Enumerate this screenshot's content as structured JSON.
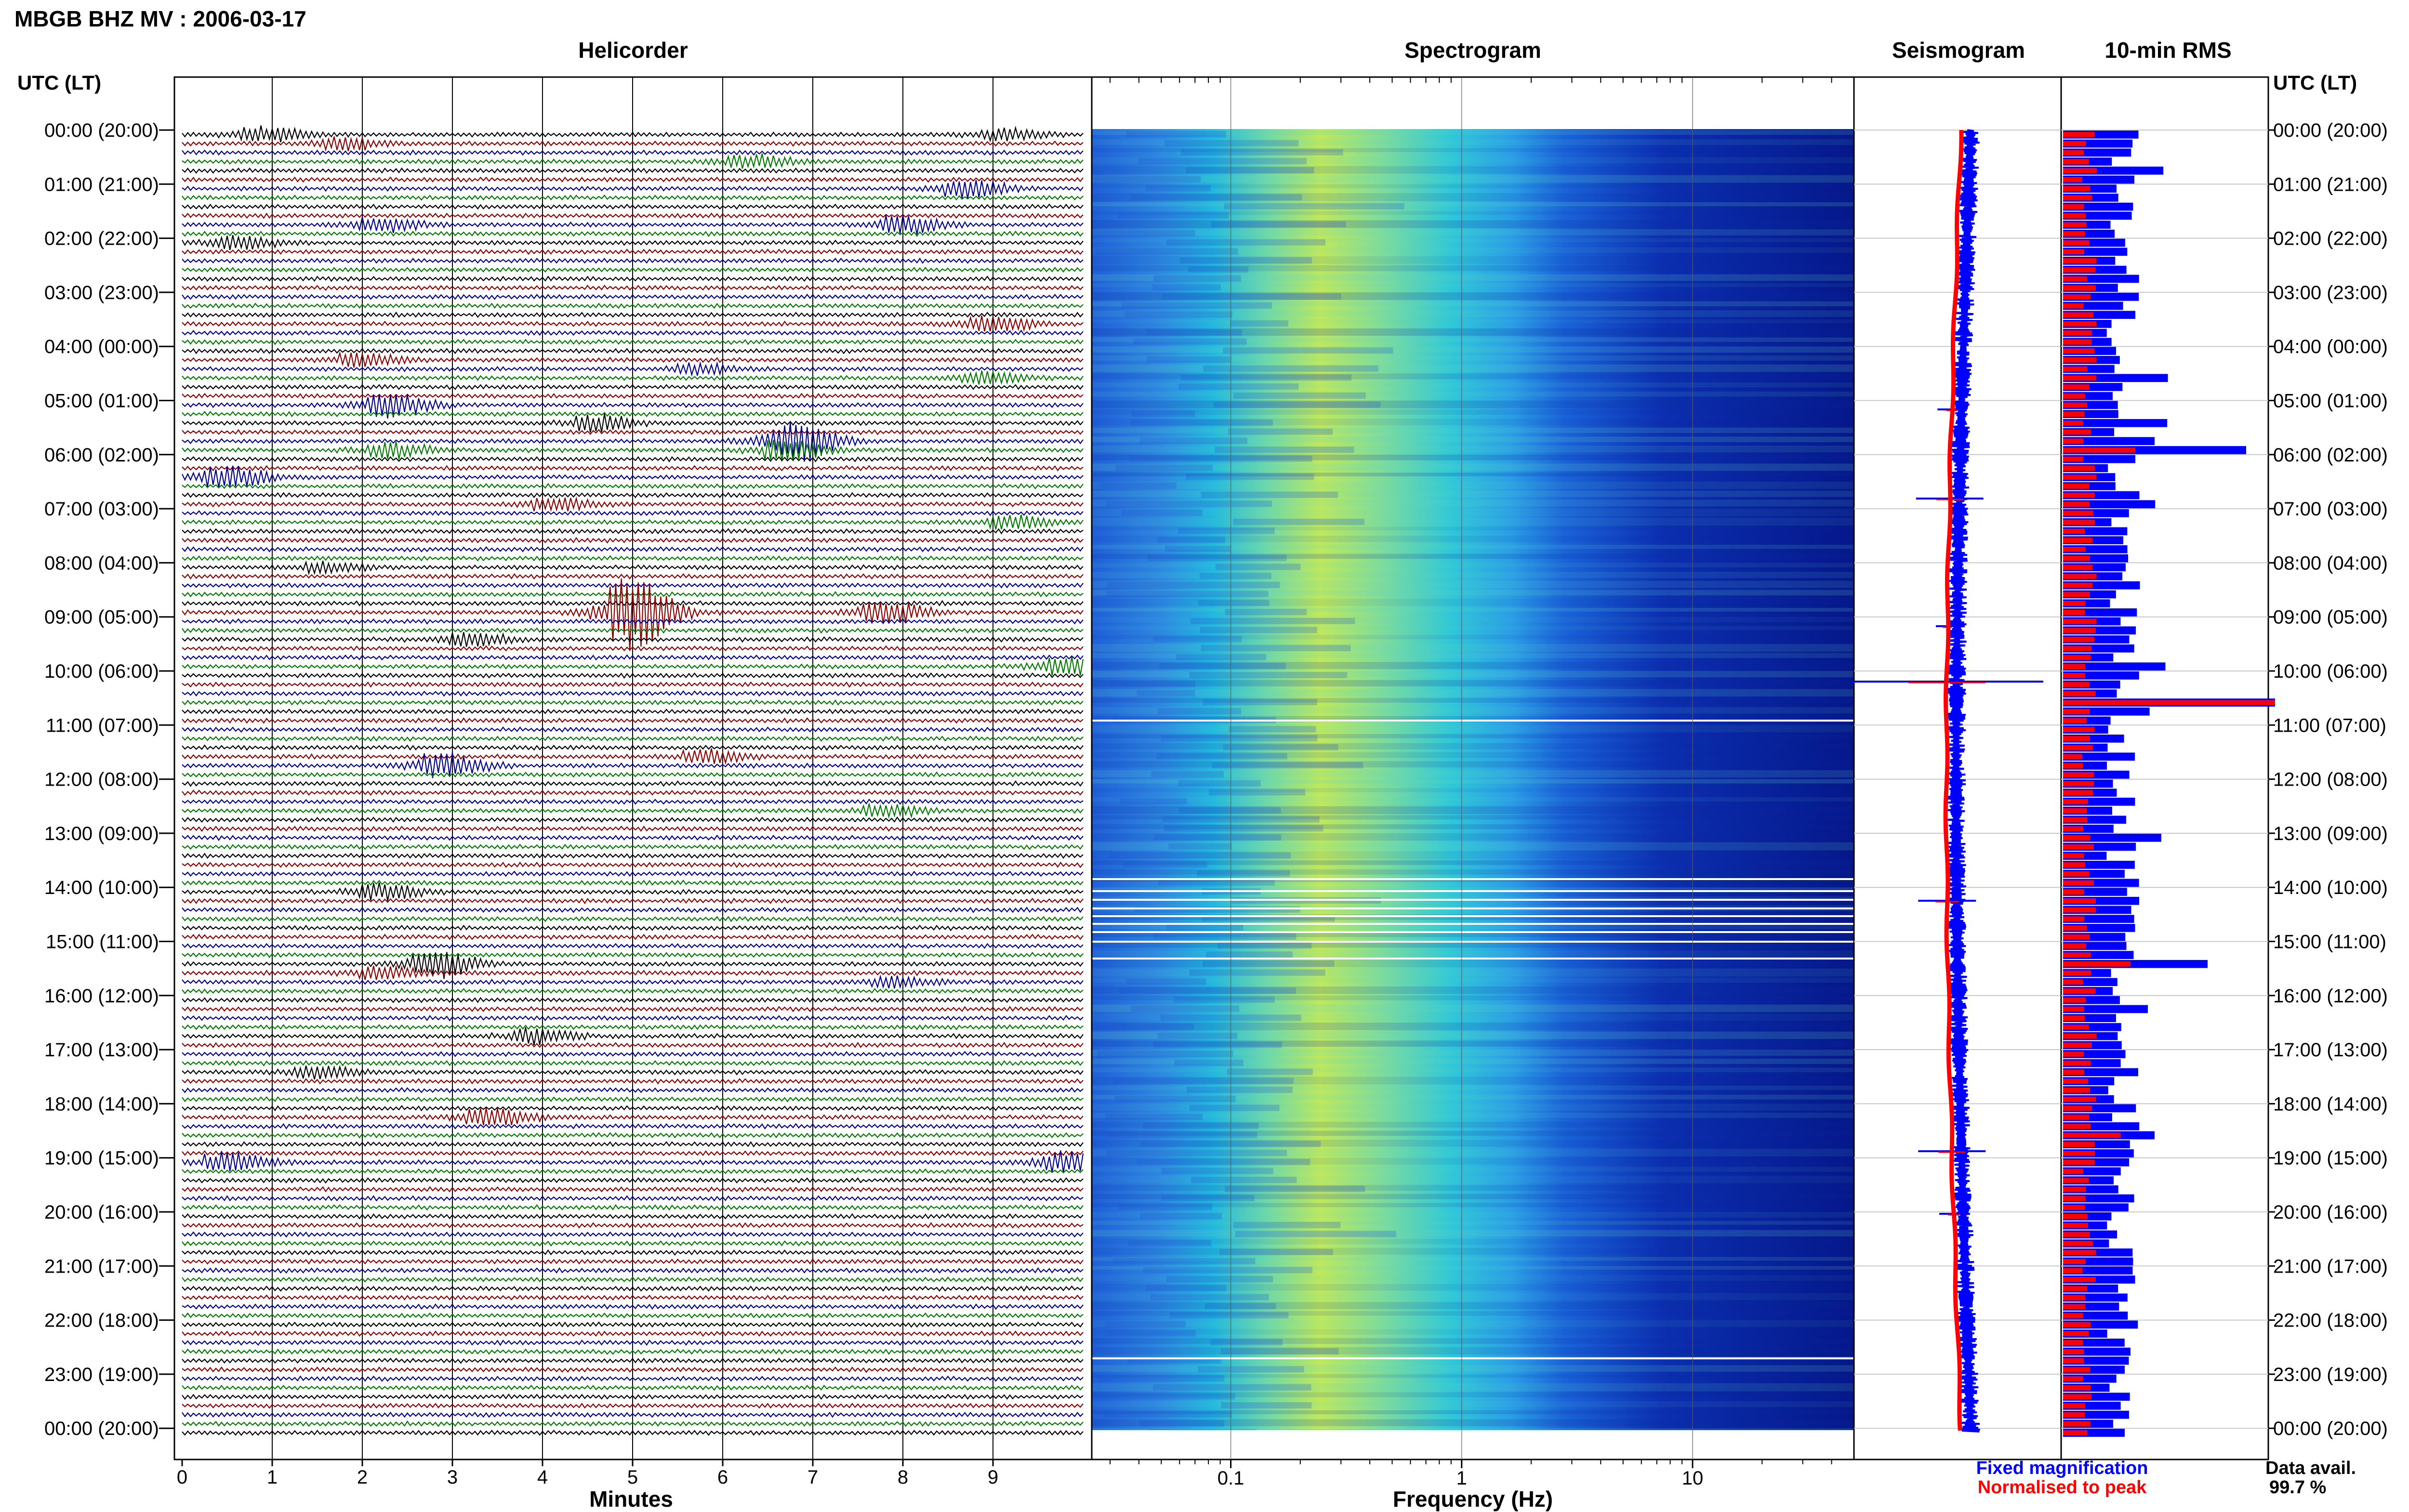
{
  "header": {
    "title": "MBGB BHZ MV : 2006-03-17",
    "utc_label_left": "UTC (LT)",
    "utc_label_right": "UTC (LT)"
  },
  "panels": {
    "helicorder": "Helicorder",
    "spectrogram": "Spectrogram",
    "seismogram": "Seismogram",
    "rms": "10-min RMS"
  },
  "chart_data": {
    "type": "heatmap",
    "time_labels": [
      "00:00 (20:00)",
      "01:00 (21:00)",
      "02:00 (22:00)",
      "03:00 (23:00)",
      "04:00 (00:00)",
      "05:00 (01:00)",
      "06:00 (02:00)",
      "07:00 (03:00)",
      "08:00 (04:00)",
      "09:00 (05:00)",
      "10:00 (06:00)",
      "11:00 (07:00)",
      "12:00 (08:00)",
      "13:00 (09:00)",
      "14:00 (10:00)",
      "15:00 (11:00)",
      "16:00 (12:00)",
      "17:00 (13:00)",
      "18:00 (14:00)",
      "19:00 (15:00)",
      "20:00 (16:00)",
      "21:00 (17:00)",
      "22:00 (18:00)",
      "23:00 (19:00)",
      "00:00 (20:00)"
    ],
    "helicorder": {
      "xlabel": "Minutes",
      "x_ticks": [
        "0",
        "1",
        "2",
        "3",
        "4",
        "5",
        "6",
        "7",
        "8",
        "9"
      ],
      "xlim": [
        0,
        10
      ],
      "trace_colors": [
        "#000000",
        "#8b0000",
        "#00008b",
        "#007a00"
      ],
      "events": [
        {
          "row": 0,
          "minute": 0.9,
          "amp": 0.6
        },
        {
          "row": 1,
          "minute": 1.8,
          "amp": 0.5
        },
        {
          "row": 0,
          "minute": 9.1,
          "amp": 0.4
        },
        {
          "row": 3,
          "minute": 6.3,
          "amp": 0.5
        },
        {
          "row": 6,
          "minute": 8.7,
          "amp": 0.7
        },
        {
          "row": 10,
          "minute": 2.2,
          "amp": 0.6
        },
        {
          "row": 10,
          "minute": 8.0,
          "amp": 0.7
        },
        {
          "row": 12,
          "minute": 0.6,
          "amp": 0.5
        },
        {
          "row": 21,
          "minute": 9.0,
          "amp": 0.6
        },
        {
          "row": 25,
          "minute": 2.0,
          "amp": 0.5
        },
        {
          "row": 26,
          "minute": 5.7,
          "amp": 0.4
        },
        {
          "row": 27,
          "minute": 8.9,
          "amp": 0.4
        },
        {
          "row": 30,
          "minute": 2.3,
          "amp": 0.9
        },
        {
          "row": 32,
          "minute": 4.6,
          "amp": 0.6
        },
        {
          "row": 34,
          "minute": 6.8,
          "amp": 1.6
        },
        {
          "row": 35,
          "minute": 6.7,
          "amp": 0.8
        },
        {
          "row": 35,
          "minute": 2.3,
          "amp": 0.6
        },
        {
          "row": 38,
          "minute": 0.5,
          "amp": 0.8
        },
        {
          "row": 41,
          "minute": 4.1,
          "amp": 0.5
        },
        {
          "row": 43,
          "minute": 9.2,
          "amp": 0.5
        },
        {
          "row": 48,
          "minute": 1.6,
          "amp": 0.4
        },
        {
          "row": 53,
          "minute": 5.0,
          "amp": 3.0
        },
        {
          "row": 53,
          "minute": 7.8,
          "amp": 0.9
        },
        {
          "row": 56,
          "minute": 3.2,
          "amp": 0.5
        },
        {
          "row": 59,
          "minute": 9.8,
          "amp": 0.7
        },
        {
          "row": 69,
          "minute": 5.8,
          "amp": 0.5
        },
        {
          "row": 70,
          "minute": 2.9,
          "amp": 1.0
        },
        {
          "row": 75,
          "minute": 7.8,
          "amp": 0.5
        },
        {
          "row": 84,
          "minute": 2.2,
          "amp": 0.6
        },
        {
          "row": 92,
          "minute": 2.8,
          "amp": 1.1
        },
        {
          "row": 93,
          "minute": 2.2,
          "amp": 0.5
        },
        {
          "row": 94,
          "minute": 7.9,
          "amp": 0.4
        },
        {
          "row": 100,
          "minute": 3.9,
          "amp": 0.6
        },
        {
          "row": 104,
          "minute": 1.5,
          "amp": 0.5
        },
        {
          "row": 109,
          "minute": 3.4,
          "amp": 0.7
        },
        {
          "row": 114,
          "minute": 0.5,
          "amp": 0.8
        },
        {
          "row": 114,
          "minute": 9.8,
          "amp": 0.8
        }
      ]
    },
    "spectrogram": {
      "xlabel": "Frequency (Hz)",
      "x_ticks": [
        "0.1",
        "1",
        "10"
      ],
      "xscale": "log",
      "xlim": [
        0.025,
        50
      ]
    },
    "seismogram": {
      "legend": [
        {
          "name": "Fixed magnification",
          "color": "#0000ff"
        },
        {
          "name": "Normalised to peak",
          "color": "#ff0000"
        }
      ]
    },
    "rms": {
      "interval": "10-min",
      "peak_rows": [
        35,
        63,
        92,
        111
      ],
      "data_availability_label": "Data avail.",
      "data_availability": "99.7 %"
    }
  }
}
